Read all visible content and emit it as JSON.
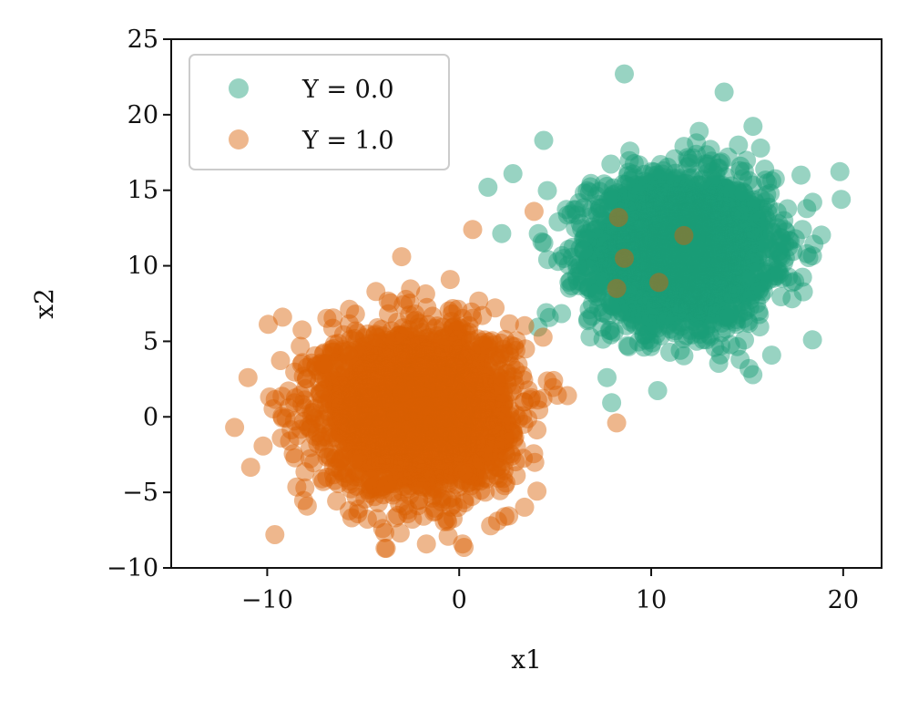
{
  "chart_data": {
    "type": "scatter",
    "title": "",
    "xlabel": "x1",
    "ylabel": "x2",
    "xlim": [
      -15,
      22
    ],
    "ylim": [
      -10,
      25
    ],
    "xticks": [
      -10,
      0,
      10,
      20
    ],
    "yticks": [
      -10,
      -5,
      0,
      5,
      10,
      15,
      20,
      25
    ],
    "xtick_labels": [
      "−10",
      "0",
      "10",
      "20"
    ],
    "ytick_labels": [
      "−10",
      "−5",
      "0",
      "5",
      "10",
      "15",
      "20",
      "25"
    ],
    "legend_placement": "top-left",
    "grid": false,
    "series": [
      {
        "name": "Y = 0.0",
        "color": "#1b9e77",
        "opacity": 0.45,
        "center": [
          11.5,
          11
        ],
        "spread": [
          2.3,
          2.4
        ],
        "approx_points": 3000,
        "outliers": [
          [
            8.6,
            22.7
          ],
          [
            13.8,
            21.5
          ],
          [
            4.4,
            18.3
          ],
          [
            19.9,
            14.4
          ],
          [
            18.4,
            5.1
          ],
          [
            2.8,
            16.1
          ],
          [
            1.5,
            15.2
          ],
          [
            15.1,
            3.2
          ],
          [
            7.7,
            2.6
          ],
          [
            12.5,
            18.9
          ],
          [
            17.8,
            16.0
          ]
        ]
      },
      {
        "name": "Y = 1.0",
        "color": "#d95f02",
        "opacity": 0.45,
        "center": [
          -2.2,
          0.5
        ],
        "spread": [
          2.4,
          2.6
        ],
        "approx_points": 3000,
        "outliers": [
          [
            -9.6,
            -7.8
          ],
          [
            -3.8,
            -8.7
          ],
          [
            -11.7,
            -0.7
          ],
          [
            -11.0,
            2.6
          ],
          [
            -9.2,
            6.6
          ],
          [
            -3.0,
            10.6
          ],
          [
            0.7,
            12.4
          ],
          [
            8.3,
            13.2
          ],
          [
            11.7,
            12.0
          ],
          [
            10.4,
            8.9
          ],
          [
            8.2,
            8.5
          ],
          [
            8.6,
            10.5
          ],
          [
            3.9,
            13.6
          ],
          [
            8.2,
            -0.4
          ],
          [
            2.0,
            -6.9
          ]
        ]
      }
    ]
  }
}
